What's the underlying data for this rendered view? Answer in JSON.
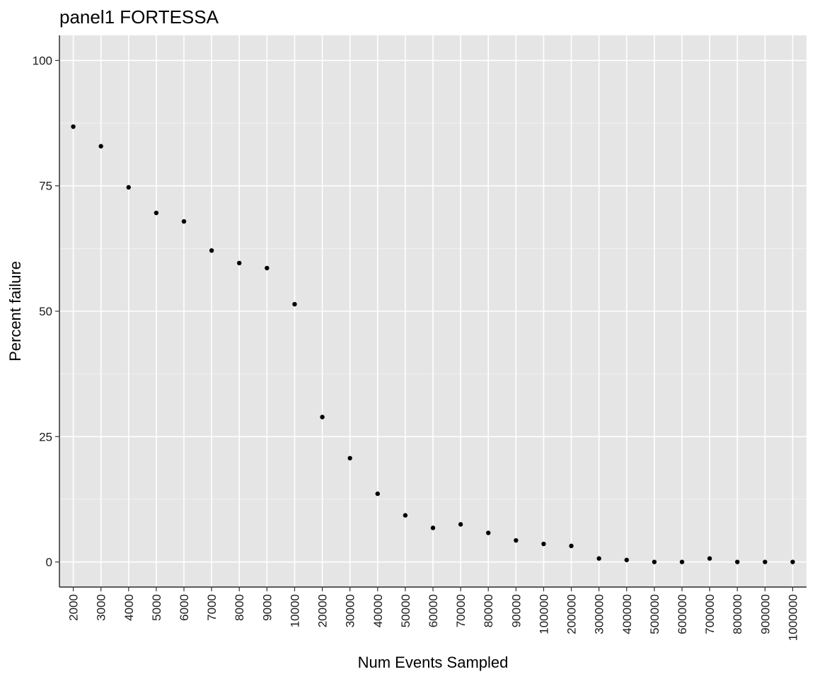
{
  "chart_data": {
    "type": "scatter",
    "title": "panel1 FORTESSA",
    "xlabel": "Num Events Sampled",
    "ylabel": "Percent failure",
    "x_scale": "categorical",
    "categories": [
      "2000",
      "3000",
      "4000",
      "5000",
      "6000",
      "7000",
      "8000",
      "9000",
      "10000",
      "20000",
      "30000",
      "40000",
      "50000",
      "60000",
      "70000",
      "80000",
      "90000",
      "100000",
      "200000",
      "300000",
      "400000",
      "500000",
      "600000",
      "700000",
      "800000",
      "900000",
      "1000000"
    ],
    "values": [
      86.8,
      82.9,
      74.7,
      69.6,
      67.9,
      62.1,
      59.6,
      58.6,
      51.4,
      28.9,
      20.7,
      13.6,
      9.3,
      6.8,
      7.5,
      5.8,
      4.3,
      3.6,
      3.2,
      0.7,
      0.4,
      0.0,
      0.0,
      0.7,
      0.0,
      0.0,
      0.0
    ],
    "ylim": [
      -5,
      105
    ],
    "yticks": [
      0,
      25,
      50,
      75,
      100
    ],
    "grid": true,
    "legend": "none",
    "colors": {
      "panel_background": "#e5e5e5",
      "grid_major": "#ffffff",
      "grid_minor": "#f2f2f2",
      "point": "#000000",
      "axis_line": "#000000"
    }
  }
}
